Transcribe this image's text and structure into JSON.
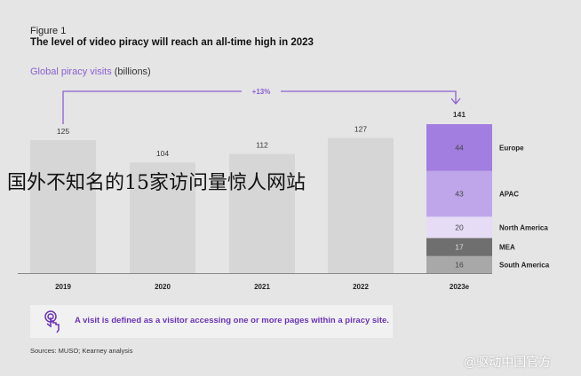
{
  "chart_data": {
    "type": "bar",
    "figure_label": "Figure 1",
    "title": "The level of video piracy will reach an all-time high in 2023",
    "subtitle_colored": "Global piracy visits",
    "subtitle_unit": "(billions)",
    "categories": [
      "2019",
      "2020",
      "2021",
      "2022",
      "2023e"
    ],
    "totals": [
      125,
      104,
      112,
      127,
      141
    ],
    "stacked_2023e": [
      {
        "name": "Europe",
        "value": 44,
        "color": "#a27ee0"
      },
      {
        "name": "APAC",
        "value": 43,
        "color": "#bfa6ea"
      },
      {
        "name": "North America",
        "value": 20,
        "color": "#e6dcf6"
      },
      {
        "name": "MEA",
        "value": 17,
        "color": "#6f6f6f"
      },
      {
        "name": "South America",
        "value": 16,
        "color": "#a8a8a8"
      }
    ],
    "bar_color": "#d6d6d6",
    "accent_color": "#8a5fd0",
    "annotation": "+13%",
    "ylim": [
      0,
      150
    ]
  },
  "note": {
    "text": "A visit is defined as a visitor accessing one or more pages within a piracy site.",
    "icon": "touch-hand-icon"
  },
  "source": "Sources: MUSO; Kearney analysis",
  "overlay_text": "国外不知名的15家访问量惊人网站",
  "watermark": "@驱动中国官方"
}
